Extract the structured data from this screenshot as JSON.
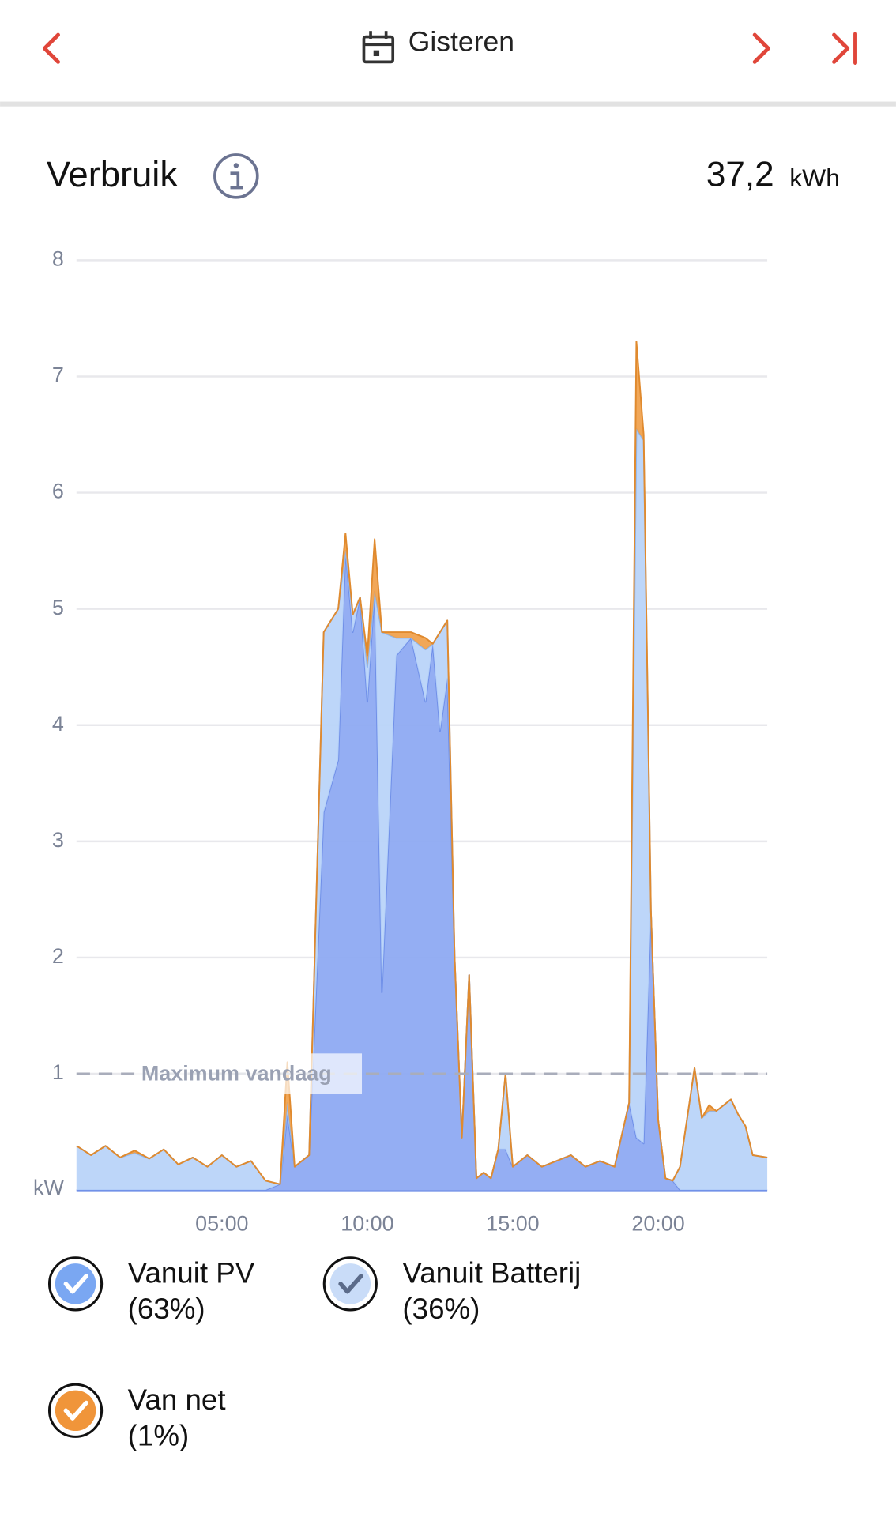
{
  "header": {
    "title": "Gisteren"
  },
  "section": {
    "title": "Verbruik",
    "total": "37,2",
    "unit": "kWh"
  },
  "chart_data": {
    "type": "stacked_area",
    "y_unit": "kW",
    "xlim": [
      0,
      23.75
    ],
    "xticks": [
      {
        "value": 5,
        "label": "05:00"
      },
      {
        "value": 10,
        "label": "10:00"
      },
      {
        "value": 15,
        "label": "15:00"
      },
      {
        "value": 20,
        "label": "20:00"
      }
    ],
    "ylim": [
      0,
      8
    ],
    "yticks": [
      1,
      2,
      3,
      4,
      5,
      6,
      7,
      8
    ],
    "grid": true,
    "reference_line": {
      "value": 1,
      "label": "Maximum vandaag"
    },
    "x": [
      0,
      0.5,
      1,
      1.5,
      2,
      2.5,
      3,
      3.5,
      4,
      4.5,
      5,
      5.5,
      6,
      6.5,
      7,
      7.25,
      7.5,
      8,
      8.5,
      9,
      9.25,
      9.5,
      9.75,
      10,
      10.25,
      10.5,
      11,
      11.5,
      12,
      12.25,
      12.5,
      12.75,
      13,
      13.25,
      13.5,
      13.75,
      14,
      14.25,
      14.5,
      14.75,
      15,
      15.5,
      16,
      16.5,
      17,
      17.5,
      18,
      18.5,
      19,
      19.25,
      19.5,
      19.75,
      20,
      20.25,
      20.5,
      20.75,
      21.25,
      21.5,
      21.75,
      22,
      22.5,
      22.75,
      23,
      23.25,
      23.75
    ],
    "series": [
      {
        "name": "Vanuit PV",
        "share": "(63%)",
        "color": "#8ba7f2",
        "line_color": "#6f8fe8",
        "values": [
          0,
          0,
          0,
          0,
          0,
          0,
          0,
          0,
          0,
          0,
          0,
          0,
          0,
          0,
          0.05,
          0.65,
          0.2,
          0.3,
          3.25,
          3.7,
          5.5,
          4.8,
          5.1,
          4.2,
          5.15,
          1.7,
          4.6,
          4.75,
          4.2,
          4.7,
          3.95,
          4.4,
          2.0,
          0.45,
          1.85,
          0.1,
          0.15,
          0.1,
          0.35,
          0.35,
          0.2,
          0.3,
          0.2,
          0.25,
          0.3,
          0.2,
          0.25,
          0.2,
          0.75,
          0.45,
          0.4,
          2.4,
          0.6,
          0.1,
          0.08,
          0,
          0,
          0,
          0,
          0,
          0,
          0,
          0,
          0,
          0
        ]
      },
      {
        "name": "Vanuit Batterij",
        "share": "(36%)",
        "color": "#b7d3f8",
        "line_color": "#8db6ee",
        "values": [
          0.38,
          0.3,
          0.38,
          0.28,
          0.32,
          0.27,
          0.35,
          0.22,
          0.28,
          0.2,
          0.3,
          0.2,
          0.25,
          0.08,
          0,
          0.1,
          0,
          0,
          1.55,
          1.3,
          0,
          0.15,
          0,
          0.3,
          0,
          3.1,
          0.15,
          0,
          0.45,
          0,
          0.85,
          0.5,
          0,
          0,
          0,
          0,
          0,
          0,
          0,
          0.65,
          0,
          0,
          0,
          0,
          0,
          0,
          0,
          0,
          0,
          6.1,
          6.05,
          0,
          0,
          0,
          0,
          0.2,
          1.05,
          0.62,
          0.68,
          0.68,
          0.78,
          0.65,
          0.55,
          0.3,
          0.28
        ]
      },
      {
        "name": "Van net",
        "share": "(1%)",
        "color": "#f0a04a",
        "line_color": "#e08a2e",
        "values": [
          0,
          0,
          0,
          0,
          0.02,
          0,
          0,
          0,
          0,
          0,
          0,
          0,
          0,
          0,
          0,
          0.35,
          0,
          0,
          0,
          0,
          0.15,
          0,
          0,
          0.1,
          0.45,
          0,
          0.05,
          0.05,
          0.1,
          0,
          0,
          0,
          0,
          0,
          0,
          0,
          0,
          0,
          0,
          0,
          0,
          0,
          0,
          0,
          0,
          0,
          0,
          0,
          0,
          0.75,
          0.05,
          0,
          0,
          0,
          0,
          0,
          0,
          0,
          0.05,
          0,
          0,
          0,
          0,
          0,
          0
        ]
      }
    ]
  }
}
